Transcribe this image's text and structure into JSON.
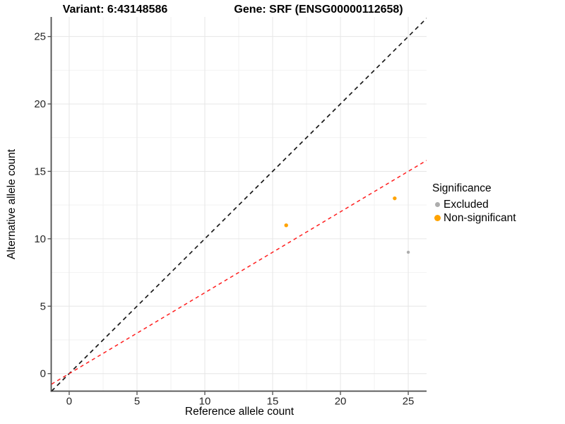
{
  "chart_data": {
    "type": "scatter",
    "title_left": "Variant: 6:43148586",
    "title_right": "Gene: SRF (ENSG00000112658)",
    "xlabel": "Reference allele count",
    "ylabel": "Alternative allele count",
    "x_ticks": [
      0,
      5,
      10,
      15,
      20,
      25
    ],
    "y_ticks": [
      0,
      5,
      10,
      15,
      20,
      25
    ],
    "x_minor_ticks": [
      2.5,
      7.5,
      12.5,
      17.5,
      22.5
    ],
    "y_minor_ticks": [
      2.5,
      7.5,
      12.5,
      17.5,
      22.5
    ],
    "xlim": [
      -1.3,
      26.35
    ],
    "ylim": [
      -1.3,
      26.45
    ],
    "grid": true,
    "legend_position": "right",
    "legend_title": "Significance",
    "series": [
      {
        "name": "Excluded",
        "color": "#ADADAD",
        "point_radius": 2.2,
        "points": [
          {
            "x": 25,
            "y": 9
          }
        ]
      },
      {
        "name": "Non-significant",
        "color": "#FFA300",
        "point_radius": 2.7,
        "points": [
          {
            "x": 16,
            "y": 11
          },
          {
            "x": 24,
            "y": 13
          }
        ]
      }
    ],
    "lines": [
      {
        "name": "identity-line",
        "slope": 1.0,
        "intercept": 0,
        "color": "#1A1A1A",
        "dash": "6 5",
        "width": 1.7
      },
      {
        "name": "allele-ratio-line",
        "slope": 0.6,
        "intercept": 0,
        "color": "#FF1F1F",
        "dash": "5 4.5",
        "width": 1.5
      }
    ],
    "style": {
      "grid_major_color": "#E6E6E6",
      "grid_minor_color": "#F2F2F2",
      "axis_color": "#4D4D4D",
      "tick_label_color": "#262626"
    }
  }
}
